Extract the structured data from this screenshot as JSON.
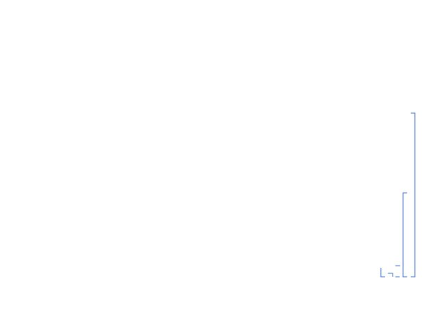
{
  "colors": {
    "background": "#ffffff",
    "line": "#3b6fd0"
  },
  "graphic": {
    "description_label": "",
    "bracket_count": 6
  }
}
